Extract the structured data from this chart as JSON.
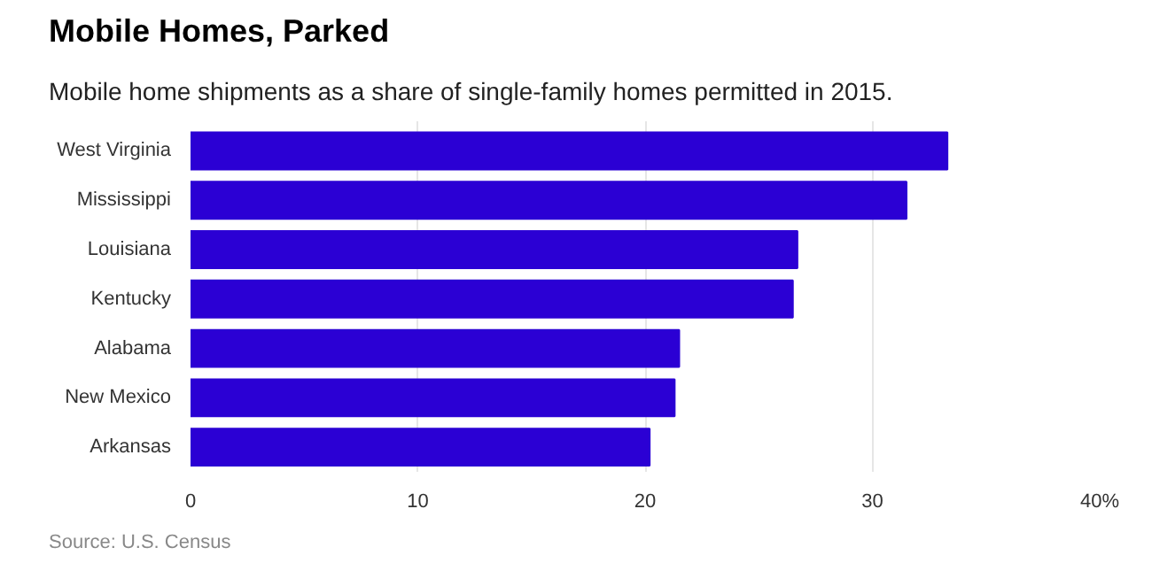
{
  "chart_data": {
    "type": "bar",
    "orientation": "horizontal",
    "title": "Mobile Homes, Parked",
    "subtitle": "Mobile home shipments as a share of single-family homes permitted in 2015.",
    "categories": [
      "West Virginia",
      "Mississippi",
      "Louisiana",
      "Kentucky",
      "Alabama",
      "New Mexico",
      "Arkansas"
    ],
    "values": [
      33.3,
      31.5,
      26.7,
      26.5,
      21.5,
      21.3,
      20.2
    ],
    "color": "#2b00d4",
    "xlim": [
      0,
      40
    ],
    "xticks": [
      0,
      10,
      20,
      30,
      {
        "value": 40,
        "label": "40%"
      }
    ],
    "grid": "x",
    "annotations": [
      "Source: U.S. Census"
    ]
  }
}
